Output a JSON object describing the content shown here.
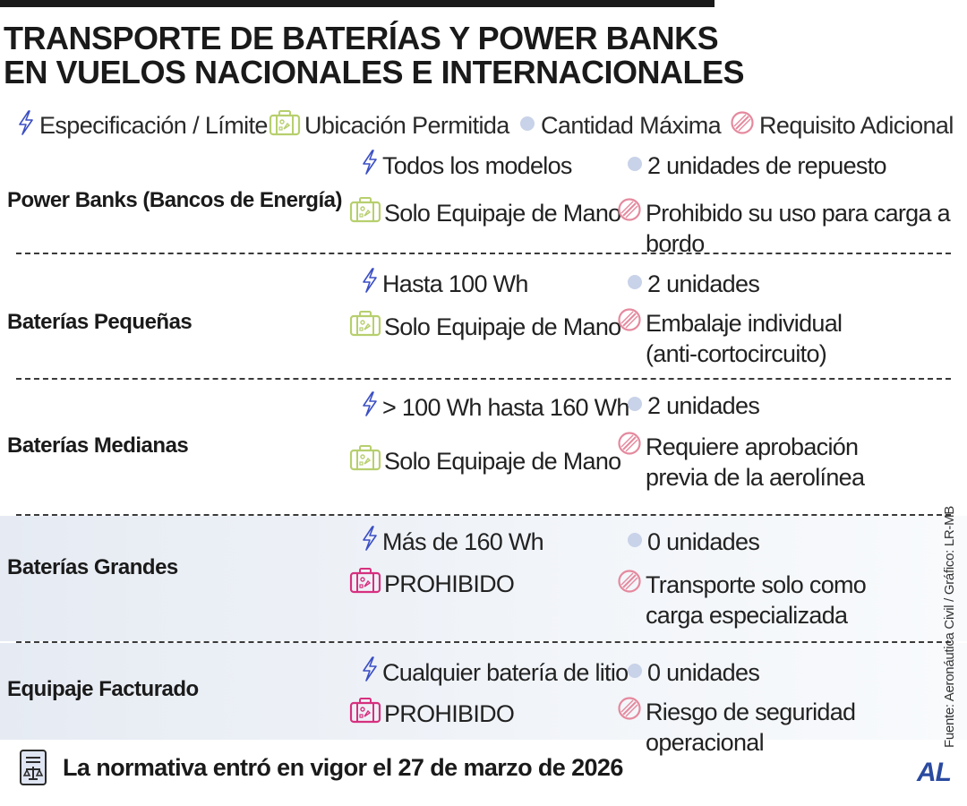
{
  "title": {
    "line1": "TRANSPORTE DE BATERÍAS Y POWER BANKS",
    "line2": "EN VUELOS NACIONALES E INTERNACIONALES"
  },
  "legend": {
    "spec": "Especificación / Límite",
    "location": "Ubicación Permitida",
    "quantity": "Cantidad Máxima",
    "requirement": "Requisito Adicional"
  },
  "colors": {
    "spec_icon": "#3b4fc4",
    "location_allowed": "#b7cf6e",
    "location_prohibited": "#d6307f",
    "quantity_dot": "#c8d2e8",
    "requirement_icon": "#e5899e"
  },
  "rows": [
    {
      "category": "Power Banks (Bancos de Energía)",
      "spec": "Todos los modelos",
      "location": "Solo Equipaje de Mano",
      "location_status": "allowed",
      "quantity": "2 unidades de repuesto",
      "requirement": "Prohibido su uso para carga a bordo"
    },
    {
      "category": "Baterías Pequeñas",
      "spec": "Hasta 100 Wh",
      "location": "Solo Equipaje de Mano",
      "location_status": "allowed",
      "quantity": "2 unidades",
      "requirement": "Embalaje individual\n(anti-cortocircuito)"
    },
    {
      "category": "Baterías Medianas",
      "spec": "> 100 Wh hasta 160 Wh",
      "location": "Solo Equipaje de Mano",
      "location_status": "allowed",
      "quantity": "2 unidades",
      "requirement": "Requiere aprobación\nprevia de la aerolínea"
    },
    {
      "category": "Baterías Grandes",
      "spec": "Más de 160 Wh",
      "location": "PROHIBIDO",
      "location_status": "prohibited",
      "quantity": "0 unidades",
      "requirement": "Transporte solo como\ncarga especializada"
    },
    {
      "category": "Equipaje Facturado",
      "spec": "Cualquier batería de litio",
      "location": "PROHIBIDO",
      "location_status": "prohibited",
      "quantity": "0 unidades",
      "requirement": "Riesgo de seguridad operacional"
    }
  ],
  "source": "Fuente: Aeronáutica Civil / Gráfico: LR-MB",
  "footer": {
    "note": "La normativa entró en vigor el 27 de marzo de 2026",
    "logo": "AL",
    "icon": "document-scale-icon"
  }
}
